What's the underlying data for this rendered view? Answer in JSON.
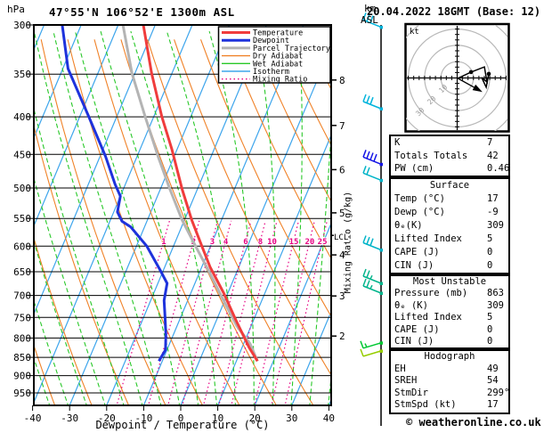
{
  "header": {
    "title": "47°55'N 106°52'E 1300m ASL",
    "date": "20.04.2022 18GMT (Base: 12)",
    "pressure_unit": "hPa",
    "altitude_unit_line1": "km",
    "altitude_unit_line2": "ASL"
  },
  "chart_data": {
    "type": "line",
    "subtype": "skew-t-log-p-sounding",
    "x_axis": {
      "label": "Dewpoint / Temperature (°C)",
      "ticks": [
        -40,
        -30,
        -20,
        -10,
        0,
        10,
        20,
        30,
        40
      ],
      "unit": "°C"
    },
    "y_axis": {
      "unit": "hPa",
      "ticks": [
        300,
        350,
        400,
        450,
        500,
        550,
        600,
        650,
        700,
        750,
        800,
        850,
        900,
        950
      ],
      "scale": "log",
      "range": [
        300,
        994
      ]
    },
    "altitude_axis": {
      "unit": "km ASL",
      "ticks": [
        {
          "km": 8,
          "p": 356.5
        },
        {
          "km": 7,
          "p": 411
        },
        {
          "km": 6,
          "p": 472
        },
        {
          "km": 5,
          "p": 540.5
        },
        {
          "km": 4,
          "p": 616.6
        },
        {
          "km": 3,
          "p": 701.2
        },
        {
          "km": 2,
          "p": 795
        }
      ]
    },
    "lcl_label": "LCL",
    "lcl_p": 580,
    "mixing_axis_label": "Mixing Ratio (g/kg)",
    "legend": [
      {
        "label": "Temperature",
        "color": "#f03c3c",
        "width": 3,
        "dash": ""
      },
      {
        "label": "Dewpoint",
        "color": "#1e32dc",
        "width": 3,
        "dash": ""
      },
      {
        "label": "Parcel Trajectory",
        "color": "#b4b4b4",
        "width": 3,
        "dash": ""
      },
      {
        "label": "Dry Adiabat",
        "color": "#f08228",
        "width": 1.4,
        "dash": ""
      },
      {
        "label": "Wet Adiabat",
        "color": "#28c828",
        "width": 1.4,
        "dash": ""
      },
      {
        "label": "Isotherm",
        "color": "#3da5ec",
        "width": 1.4,
        "dash": ""
      },
      {
        "label": "Mixing Ratio",
        "color": "#e60082",
        "width": 1.4,
        "dash": "1.5 3"
      }
    ],
    "series": {
      "temperature": [
        [
          300,
          -53.2
        ],
        [
          349,
          -45.5
        ],
        [
          400,
          -37.8
        ],
        [
          443,
          -31.4
        ],
        [
          502,
          -24.1
        ],
        [
          553,
          -18.0
        ],
        [
          601,
          -12.2
        ],
        [
          641,
          -7.7
        ],
        [
          695,
          -1.1
        ],
        [
          757,
          5.3
        ],
        [
          824,
          11.9
        ],
        [
          860,
          15.7
        ]
      ],
      "dewpoint": [
        [
          300,
          -75.1
        ],
        [
          344,
          -68.6
        ],
        [
          400,
          -57.5
        ],
        [
          453,
          -48.5
        ],
        [
          494,
          -42.8
        ],
        [
          513,
          -40.0
        ],
        [
          539,
          -39.0
        ],
        [
          555,
          -36.7
        ],
        [
          565,
          -33.7
        ],
        [
          600,
          -27.2
        ],
        [
          648,
          -20.7
        ],
        [
          674,
          -17.5
        ],
        [
          711,
          -16.4
        ],
        [
          750,
          -14.2
        ],
        [
          790,
          -12.1
        ],
        [
          830,
          -10.4
        ],
        [
          860,
          -10.9
        ]
      ],
      "parcel": [
        [
          300,
          -58.7
        ],
        [
          349,
          -50.8
        ],
        [
          400,
          -42.3
        ],
        [
          453,
          -34.3
        ],
        [
          502,
          -27.4
        ],
        [
          553,
          -20.6
        ],
        [
          601,
          -13.9
        ],
        [
          648,
          -7.7
        ],
        [
          707,
          -0.8
        ],
        [
          770,
          6.1
        ],
        [
          814,
          11.7
        ],
        [
          860,
          15.7
        ]
      ]
    },
    "background": {
      "isotherm_min": -100,
      "isotherm_max": 40,
      "isotherm_step": 10,
      "dry_adiabat_theta_min": 230,
      "dry_adiabat_theta_max": 440,
      "dry_adiabat_theta_step": 10,
      "wet_adiabat_t0_min": -60,
      "wet_adiabat_t0_max": 40,
      "wet_adiabat_t0_step": 5,
      "mixing_ratio_values": [
        1,
        2,
        3,
        4,
        6,
        8,
        10,
        15,
        20,
        25
      ],
      "pressure_line_min": 350,
      "pressure_line_max": 950,
      "pressure_line_step": 50
    },
    "wind_barbs": [
      {
        "p": 302,
        "color": "#00b4dc",
        "ticks": 3,
        "flip": false
      },
      {
        "p": 390,
        "color": "#00b4dc",
        "ticks": 3,
        "flip": false
      },
      {
        "p": 464,
        "color": "#1414e6",
        "ticks": 4,
        "flip": false
      },
      {
        "p": 488,
        "color": "#00b4c8",
        "ticks": 2,
        "flip": false
      },
      {
        "p": 607,
        "color": "#00b4c8",
        "ticks": 3,
        "flip": false
      },
      {
        "p": 674,
        "color": "#00b48c",
        "ticks": 2.5,
        "flip": false
      },
      {
        "p": 695,
        "color": "#00b48c",
        "ticks": 2.5,
        "flip": false
      },
      {
        "p": 812,
        "color": "#00c832",
        "ticks": 1.5,
        "flip": true
      },
      {
        "p": 833,
        "color": "#96cd00",
        "ticks": 1,
        "flip": true
      }
    ],
    "hodograph": {
      "unit": "kt",
      "ring_step_kt": 10,
      "ring_labels": [
        10,
        20,
        30
      ],
      "trace_kt": [
        [
          0.3,
          -0.3
        ],
        [
          8.5,
          3.6
        ],
        [
          16.7,
          6.8
        ],
        [
          18.3,
          -2.5
        ],
        [
          15.0,
          0.3
        ],
        [
          17.8,
          -5.7
        ],
        [
          19.4,
          2.5
        ]
      ],
      "dots_kt": [
        [
          8.5,
          3.6
        ],
        [
          19.4,
          2.5
        ]
      ],
      "storm_motion": {
        "dir_deg": 299,
        "speed_kt": 17
      }
    }
  },
  "panels": [
    {
      "rows": [
        {
          "label": "K",
          "value": "7"
        },
        {
          "label": "Totals Totals",
          "value": "42"
        },
        {
          "label": "PW (cm)",
          "value": "0.46"
        }
      ]
    },
    {
      "header": "Surface",
      "rows": [
        {
          "label": "Temp (°C)",
          "value": "17"
        },
        {
          "label": "Dewp (°C)",
          "value": "-9"
        },
        {
          "label": "θₑ(K)",
          "value": "309"
        },
        {
          "label": "Lifted Index",
          "value": "5"
        },
        {
          "label": "CAPE (J)",
          "value": "0"
        },
        {
          "label": "CIN (J)",
          "value": "0"
        }
      ]
    },
    {
      "header": "Most Unstable",
      "rows": [
        {
          "label": "Pressure (mb)",
          "value": "863"
        },
        {
          "label": "θₑ (K)",
          "value": "309"
        },
        {
          "label": "Lifted Index",
          "value": "5"
        },
        {
          "label": "CAPE (J)",
          "value": "0"
        },
        {
          "label": "CIN (J)",
          "value": "0"
        }
      ]
    },
    {
      "header": "Hodograph",
      "rows": [
        {
          "label": "EH",
          "value": "49"
        },
        {
          "label": "SREH",
          "value": "54"
        },
        {
          "label": "StmDir",
          "value": "299°"
        },
        {
          "label": "StmSpd (kt)",
          "value": "17"
        }
      ]
    }
  ],
  "footer": {
    "credit": "© weatheronline.co.uk"
  }
}
